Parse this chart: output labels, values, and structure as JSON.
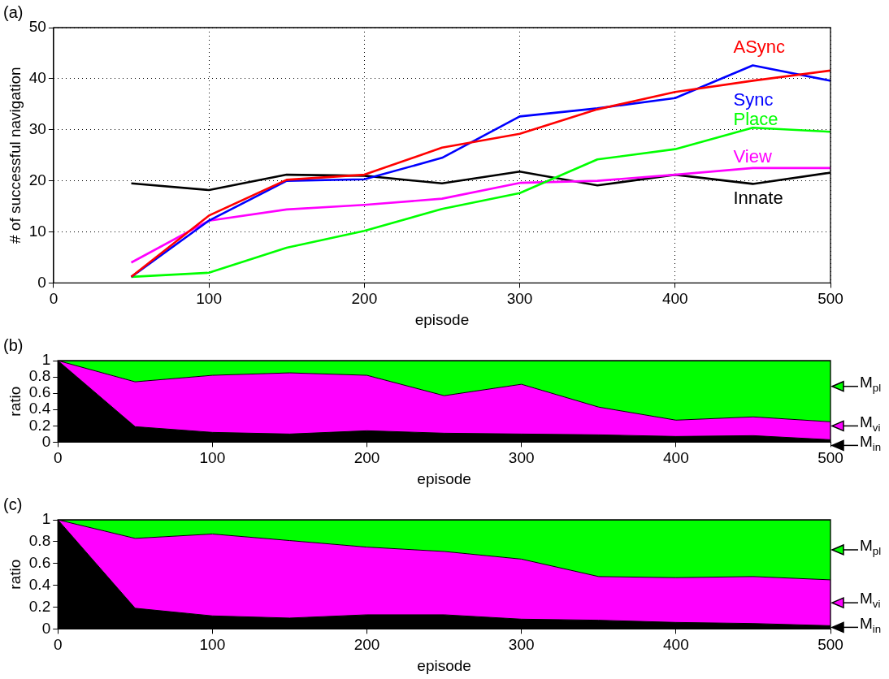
{
  "chart_data": [
    {
      "type": "line",
      "title": "(a)",
      "xlabel": "episode",
      "ylabel": "# of successful navigation",
      "x": [
        50,
        100,
        150,
        200,
        250,
        300,
        350,
        400,
        450,
        500
      ],
      "xlim": [
        0,
        500
      ],
      "xticks": [
        0,
        100,
        200,
        300,
        400,
        500
      ],
      "ylim": [
        0,
        50
      ],
      "yticks": [
        0,
        10,
        20,
        30,
        40,
        50
      ],
      "grid": true,
      "marker": "none",
      "line_style": "solid",
      "series": [
        {
          "name": "ASync",
          "color": "#ff0000",
          "values": [
            1.2,
            13.2,
            20.2,
            21.2,
            26.5,
            29.2,
            34.0,
            37.4,
            39.6,
            41.6
          ]
        },
        {
          "name": "Sync",
          "color": "#0000ff",
          "values": [
            1.2,
            12.2,
            20.0,
            20.3,
            24.5,
            32.6,
            34.2,
            36.2,
            42.6,
            39.6
          ]
        },
        {
          "name": "Place",
          "color": "#00ff00",
          "values": [
            1.2,
            2.0,
            6.9,
            10.2,
            14.5,
            17.6,
            24.2,
            26.2,
            30.4,
            29.6
          ]
        },
        {
          "name": "View",
          "color": "#ff00ff",
          "values": [
            4.0,
            12.2,
            14.4,
            15.3,
            16.5,
            19.6,
            20.0,
            21.2,
            22.5,
            22.5
          ]
        },
        {
          "name": "Innate",
          "color": "#000000",
          "values": [
            19.5,
            18.2,
            21.2,
            21.0,
            19.5,
            21.8,
            19.1,
            21.2,
            19.4,
            21.6
          ]
        }
      ]
    },
    {
      "type": "area",
      "title": "(b)",
      "xlabel": "episode",
      "ylabel": "ratio",
      "stacked": true,
      "legend": "right",
      "x": [
        0,
        50,
        100,
        150,
        200,
        250,
        300,
        350,
        400,
        450,
        500
      ],
      "xlim": [
        0,
        500
      ],
      "xticks": [
        0,
        100,
        200,
        300,
        400,
        500
      ],
      "ylim": [
        0,
        1
      ],
      "yticks": [
        0,
        0.2,
        0.4,
        0.6,
        0.8,
        1
      ],
      "series": [
        {
          "name": "M$_{in}$",
          "color": "#000000",
          "values": [
            1,
            0.19,
            0.12,
            0.1,
            0.14,
            0.11,
            0.1,
            0.09,
            0.07,
            0.08,
            0.03
          ]
        },
        {
          "name": "M$_{vi}$",
          "color": "#ff00ff",
          "values": [
            0,
            0.55,
            0.7,
            0.75,
            0.68,
            0.46,
            0.61,
            0.34,
            0.2,
            0.23,
            0.22
          ]
        },
        {
          "name": "M$_{pl}$",
          "color": "#00ff00",
          "values": [
            0,
            0.26,
            0.18,
            0.15,
            0.18,
            0.43,
            0.29,
            0.57,
            0.73,
            0.69,
            0.75
          ]
        }
      ]
    },
    {
      "type": "area",
      "title": "(c)",
      "xlabel": "episode",
      "ylabel": "ratio",
      "stacked": true,
      "legend": "right",
      "x": [
        0,
        50,
        100,
        150,
        200,
        250,
        300,
        350,
        400,
        450,
        500
      ],
      "xlim": [
        0,
        500
      ],
      "xticks": [
        0,
        100,
        200,
        300,
        400,
        500
      ],
      "ylim": [
        0,
        1
      ],
      "yticks": [
        0,
        0.2,
        0.4,
        0.6,
        0.8,
        1
      ],
      "series": [
        {
          "name": "M$_{in}$",
          "color": "#000000",
          "values": [
            1,
            0.19,
            0.12,
            0.1,
            0.13,
            0.13,
            0.09,
            0.08,
            0.06,
            0.05,
            0.03
          ]
        },
        {
          "name": "M$_{vi}$",
          "color": "#ff00ff",
          "values": [
            0,
            0.64,
            0.75,
            0.71,
            0.62,
            0.58,
            0.55,
            0.4,
            0.41,
            0.43,
            0.42
          ]
        },
        {
          "name": "M$_{pl}$",
          "color": "#00ff00",
          "values": [
            0,
            0.17,
            0.13,
            0.19,
            0.25,
            0.29,
            0.36,
            0.52,
            0.53,
            0.52,
            0.55
          ]
        }
      ]
    }
  ]
}
